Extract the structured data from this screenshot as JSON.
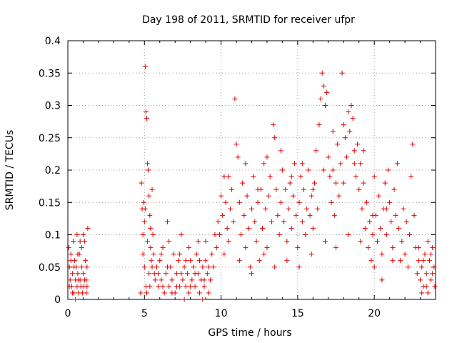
{
  "chart_data": {
    "type": "scatter",
    "title": "Day 198 of 2011, SRMTID for receiver ufpr",
    "xlabel": "GPS time / hours",
    "ylabel": "SRMTID / TECUs",
    "xlim": [
      0,
      24
    ],
    "ylim": [
      0,
      0.4
    ],
    "xticks": [
      0,
      5,
      10,
      15,
      20
    ],
    "xtick_labels": [
      "0",
      "5",
      "10",
      "15",
      "20"
    ],
    "yticks": [
      0,
      0.05,
      0.1,
      0.15,
      0.2,
      0.25,
      0.3,
      0.35,
      0.4
    ],
    "ytick_labels": [
      "0",
      "0.05",
      "0.1",
      "0.15",
      "0.2",
      "0.25",
      "0.3",
      "0.35",
      "0.4"
    ],
    "grid": true,
    "marker": "plus",
    "color": "#e00000",
    "series": [
      {
        "name": "SRMTID",
        "points": [
          [
            0.05,
            0.08
          ],
          [
            0.1,
            0.05
          ],
          [
            0.15,
            0.03
          ],
          [
            0.2,
            0.07
          ],
          [
            0.25,
            0.02
          ],
          [
            0.3,
            0.04
          ],
          [
            0.35,
            0.09
          ],
          [
            0.4,
            0.01
          ],
          [
            0.45,
            0.06
          ],
          [
            0.5,
            0.03
          ],
          [
            0.55,
            0.05
          ],
          [
            0.6,
            0.02
          ],
          [
            0.65,
            0.04
          ],
          [
            0.7,
            0.01
          ],
          [
            0.75,
            0.07
          ],
          [
            0.8,
            0.03
          ],
          [
            0.85,
            0.02
          ],
          [
            0.9,
            0.05
          ],
          [
            0.95,
            0.01
          ],
          [
            1.0,
            0.04
          ],
          [
            1.05,
            0.02
          ],
          [
            1.1,
            0.03
          ],
          [
            1.15,
            0.06
          ],
          [
            1.2,
            0.01
          ],
          [
            1.25,
            0.02
          ],
          [
            0.6,
            0.1
          ],
          [
            0.8,
            0.09
          ],
          [
            1.0,
            0.1
          ],
          [
            1.1,
            0.09
          ],
          [
            1.3,
            0.11
          ],
          [
            0.2,
            0.06
          ],
          [
            0.3,
            0.01
          ],
          [
            0.5,
            0.0
          ],
          [
            0.7,
            0.03
          ],
          [
            0.9,
            0.08
          ],
          [
            1.2,
            0.03
          ],
          [
            1.25,
            0.05
          ],
          [
            0.1,
            0.02
          ],
          [
            0.4,
            0.05
          ],
          [
            0.65,
            0.07
          ],
          [
            4.75,
            0.01
          ],
          [
            4.8,
            0.18
          ],
          [
            4.85,
            0.14
          ],
          [
            4.9,
            0.1
          ],
          [
            4.95,
            0.15
          ],
          [
            5.0,
            0.12
          ],
          [
            5.05,
            0.36
          ],
          [
            5.1,
            0.29
          ],
          [
            5.15,
            0.28
          ],
          [
            5.2,
            0.21
          ],
          [
            5.25,
            0.2
          ],
          [
            5.3,
            0.16
          ],
          [
            5.35,
            0.13
          ],
          [
            5.4,
            0.08
          ],
          [
            5.45,
            0.06
          ],
          [
            5.5,
            0.17
          ],
          [
            5.55,
            0.1
          ],
          [
            5.6,
            0.07
          ],
          [
            5.65,
            0.04
          ],
          [
            5.7,
            0.03
          ],
          [
            5.0,
            0.05
          ],
          [
            5.1,
            0.02
          ],
          [
            5.2,
            0.09
          ],
          [
            5.3,
            0.04
          ],
          [
            5.4,
            0.11
          ],
          [
            4.9,
            0.07
          ],
          [
            5.05,
            0.14
          ],
          [
            5.15,
            0.01
          ],
          [
            5.35,
            0.02
          ],
          [
            5.5,
            0.05
          ],
          [
            5.8,
            0.05
          ],
          [
            5.9,
            0.02
          ],
          [
            6.0,
            0.06
          ],
          [
            6.1,
            0.03
          ],
          [
            6.2,
            0.08
          ],
          [
            6.3,
            0.01
          ],
          [
            6.4,
            0.04
          ],
          [
            6.5,
            0.12
          ],
          [
            6.6,
            0.02
          ],
          [
            6.7,
            0.05
          ],
          [
            6.8,
            0.03
          ],
          [
            6.9,
            0.07
          ],
          [
            7.0,
            0.01
          ],
          [
            7.1,
            0.04
          ],
          [
            7.2,
            0.06
          ],
          [
            7.3,
            0.02
          ],
          [
            7.4,
            0.1
          ],
          [
            7.5,
            0.03
          ],
          [
            7.6,
            0.05
          ],
          [
            7.7,
            0.02
          ],
          [
            7.8,
            0.04
          ],
          [
            7.9,
            0.01
          ],
          [
            8.0,
            0.06
          ],
          [
            8.1,
            0.03
          ],
          [
            8.2,
            0.05
          ],
          [
            8.3,
            0.02
          ],
          [
            8.4,
            0.07
          ],
          [
            8.5,
            0.04
          ],
          [
            8.6,
            0.01
          ],
          [
            8.7,
            0.03
          ],
          [
            8.8,
            0.05
          ],
          [
            8.9,
            0.02
          ],
          [
            9.0,
            0.06
          ],
          [
            9.1,
            0.04
          ],
          [
            9.2,
            0.01
          ],
          [
            9.3,
            0.03
          ],
          [
            9.4,
            0.07
          ],
          [
            9.5,
            0.05
          ],
          [
            9.6,
            0.1
          ],
          [
            9.7,
            0.08
          ],
          [
            5.9,
            0.04
          ],
          [
            6.2,
            0.02
          ],
          [
            6.5,
            0.05
          ],
          [
            6.8,
            0.01
          ],
          [
            7.1,
            0.02
          ],
          [
            7.4,
            0.04
          ],
          [
            7.7,
            0.06
          ],
          [
            8.0,
            0.02
          ],
          [
            8.3,
            0.04
          ],
          [
            8.6,
            0.06
          ],
          [
            8.9,
            0.03
          ],
          [
            9.2,
            0.05
          ],
          [
            6.1,
            0.07
          ],
          [
            6.6,
            0.09
          ],
          [
            7.3,
            0.07
          ],
          [
            7.9,
            0.08
          ],
          [
            8.5,
            0.09
          ],
          [
            9.0,
            0.09
          ],
          [
            7.6,
            0.0
          ],
          [
            8.8,
            0.0
          ],
          [
            9.8,
            0.12
          ],
          [
            9.9,
            0.1
          ],
          [
            10.0,
            0.16
          ],
          [
            10.1,
            0.13
          ],
          [
            10.2,
            0.07
          ],
          [
            10.3,
            0.15
          ],
          [
            10.4,
            0.11
          ],
          [
            10.5,
            0.19
          ],
          [
            10.6,
            0.14
          ],
          [
            10.7,
            0.17
          ],
          [
            10.8,
            0.12
          ],
          [
            10.9,
            0.31
          ],
          [
            11.0,
            0.24
          ],
          [
            11.1,
            0.22
          ],
          [
            11.2,
            0.15
          ],
          [
            11.3,
            0.1
          ],
          [
            11.4,
            0.18
          ],
          [
            11.5,
            0.13
          ],
          [
            11.6,
            0.08
          ],
          [
            11.7,
            0.16
          ],
          [
            11.8,
            0.11
          ],
          [
            11.9,
            0.05
          ],
          [
            12.0,
            0.14
          ],
          [
            12.1,
            0.19
          ],
          [
            12.2,
            0.12
          ],
          [
            12.3,
            0.09
          ],
          [
            12.4,
            0.15
          ],
          [
            12.5,
            0.06
          ],
          [
            12.6,
            0.17
          ],
          [
            12.7,
            0.11
          ],
          [
            12.8,
            0.21
          ],
          [
            12.9,
            0.14
          ],
          [
            13.0,
            0.08
          ],
          [
            13.1,
            0.16
          ],
          [
            13.2,
            0.19
          ],
          [
            13.3,
            0.12
          ],
          [
            13.4,
            0.27
          ],
          [
            13.5,
            0.25
          ],
          [
            13.6,
            0.17
          ],
          [
            13.7,
            0.13
          ],
          [
            13.8,
            0.1
          ],
          [
            13.9,
            0.15
          ],
          [
            14.0,
            0.2
          ],
          [
            14.1,
            0.12
          ],
          [
            14.2,
            0.17
          ],
          [
            14.3,
            0.09
          ],
          [
            14.4,
            0.14
          ],
          [
            14.5,
            0.18
          ],
          [
            14.6,
            0.11
          ],
          [
            14.7,
            0.16
          ],
          [
            14.8,
            0.21
          ],
          [
            14.9,
            0.13
          ],
          [
            15.0,
            0.08
          ],
          [
            15.1,
            0.15
          ],
          [
            15.2,
            0.19
          ],
          [
            15.3,
            0.12
          ],
          [
            15.4,
            0.17
          ],
          [
            15.5,
            0.1
          ],
          [
            15.6,
            0.14
          ],
          [
            15.7,
            0.2
          ],
          [
            15.8,
            0.13
          ],
          [
            15.9,
            0.16
          ],
          [
            16.0,
            0.11
          ],
          [
            16.1,
            0.18
          ],
          [
            16.2,
            0.23
          ],
          [
            16.3,
            0.14
          ],
          [
            16.4,
            0.27
          ],
          [
            16.5,
            0.31
          ],
          [
            16.6,
            0.35
          ],
          [
            16.7,
            0.33
          ],
          [
            16.8,
            0.3
          ],
          [
            16.9,
            0.32
          ],
          [
            17.0,
            0.22
          ],
          [
            17.1,
            0.19
          ],
          [
            17.2,
            0.15
          ],
          [
            17.3,
            0.2
          ],
          [
            17.4,
            0.13
          ],
          [
            17.5,
            0.18
          ],
          [
            17.6,
            0.24
          ],
          [
            17.7,
            0.16
          ],
          [
            17.8,
            0.21
          ],
          [
            17.9,
            0.35
          ],
          [
            18.0,
            0.27
          ],
          [
            18.1,
            0.25
          ],
          [
            18.2,
            0.22
          ],
          [
            18.3,
            0.29
          ],
          [
            18.4,
            0.26
          ],
          [
            18.5,
            0.3
          ],
          [
            18.6,
            0.28
          ],
          [
            18.7,
            0.23
          ],
          [
            18.8,
            0.19
          ],
          [
            18.9,
            0.24
          ],
          [
            19.0,
            0.17
          ],
          [
            19.1,
            0.21
          ],
          [
            19.2,
            0.14
          ],
          [
            19.3,
            0.18
          ],
          [
            19.4,
            0.11
          ],
          [
            19.5,
            0.15
          ],
          [
            19.6,
            0.08
          ],
          [
            19.7,
            0.12
          ],
          [
            19.8,
            0.06
          ],
          [
            19.9,
            0.1
          ],
          [
            20.0,
            0.05
          ],
          [
            20.1,
            0.13
          ],
          [
            20.2,
            0.09
          ],
          [
            20.3,
            0.16
          ],
          [
            20.4,
            0.11
          ],
          [
            20.5,
            0.07
          ],
          [
            20.6,
            0.14
          ],
          [
            20.7,
            0.18
          ],
          [
            20.8,
            0.1
          ],
          [
            20.9,
            0.2
          ],
          [
            21.0,
            0.15
          ],
          [
            21.1,
            0.12
          ],
          [
            21.2,
            0.08
          ],
          [
            21.3,
            0.17
          ],
          [
            21.4,
            0.13
          ],
          [
            21.5,
            0.21
          ],
          [
            21.6,
            0.11
          ],
          [
            21.7,
            0.06
          ],
          [
            21.8,
            0.09
          ],
          [
            21.9,
            0.14
          ],
          [
            22.0,
            0.07
          ],
          [
            22.1,
            0.12
          ],
          [
            22.2,
            0.05
          ],
          [
            22.3,
            0.1
          ],
          [
            22.4,
            0.19
          ],
          [
            22.5,
            0.24
          ],
          [
            22.6,
            0.13
          ],
          [
            22.7,
            0.08
          ],
          [
            22.8,
            0.04
          ],
          [
            22.9,
            0.06
          ],
          [
            23.0,
            0.03
          ],
          [
            23.1,
            0.05
          ],
          [
            23.2,
            0.02
          ],
          [
            23.3,
            0.07
          ],
          [
            23.4,
            0.04
          ],
          [
            23.5,
            0.01
          ],
          [
            23.6,
            0.06
          ],
          [
            23.7,
            0.03
          ],
          [
            23.8,
            0.08
          ],
          [
            23.9,
            0.05
          ],
          [
            23.95,
            0.02
          ],
          [
            23.5,
            0.09
          ],
          [
            23.2,
            0.06
          ],
          [
            22.9,
            0.08
          ],
          [
            23.1,
            0.01
          ],
          [
            23.7,
            0.07
          ],
          [
            23.4,
            0.02
          ],
          [
            23.8,
            0.04
          ],
          [
            10.5,
            0.09
          ],
          [
            11.2,
            0.06
          ],
          [
            12.0,
            0.04
          ],
          [
            12.8,
            0.07
          ],
          [
            13.5,
            0.05
          ],
          [
            14.3,
            0.06
          ],
          [
            15.1,
            0.05
          ],
          [
            15.9,
            0.07
          ],
          [
            16.8,
            0.09
          ],
          [
            17.5,
            0.08
          ],
          [
            18.3,
            0.1
          ],
          [
            19.1,
            0.09
          ],
          [
            19.9,
            0.13
          ],
          [
            20.5,
            0.03
          ],
          [
            21.2,
            0.06
          ],
          [
            10.2,
            0.19
          ],
          [
            11.6,
            0.21
          ],
          [
            12.4,
            0.17
          ],
          [
            13.0,
            0.22
          ],
          [
            13.9,
            0.23
          ],
          [
            14.6,
            0.19
          ],
          [
            15.3,
            0.21
          ],
          [
            16.0,
            0.17
          ],
          [
            16.7,
            0.2
          ],
          [
            17.3,
            0.26
          ],
          [
            18.0,
            0.18
          ],
          [
            18.7,
            0.21
          ],
          [
            19.3,
            0.23
          ],
          [
            20.0,
            0.19
          ],
          [
            20.8,
            0.14
          ]
        ]
      }
    ]
  }
}
